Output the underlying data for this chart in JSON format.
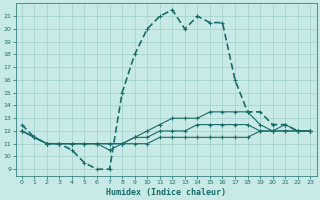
{
  "xlabel": "Humidex (Indice chaleur)",
  "background_color": "#c8eae6",
  "grid_color": "#a0d0cc",
  "line_color": "#1a6b6b",
  "xlim": [
    -0.5,
    23.5
  ],
  "ylim": [
    8.5,
    22.0
  ],
  "yticks": [
    9,
    10,
    11,
    12,
    13,
    14,
    15,
    16,
    17,
    18,
    19,
    20,
    21
  ],
  "xticks": [
    0,
    1,
    2,
    3,
    4,
    5,
    6,
    7,
    8,
    9,
    10,
    11,
    12,
    13,
    14,
    15,
    16,
    17,
    18,
    19,
    20,
    21,
    22,
    23
  ],
  "series": [
    {
      "x": [
        0,
        1,
        2,
        3,
        4,
        5,
        6,
        7,
        8,
        9,
        10,
        11,
        12,
        13,
        14,
        15,
        16,
        17,
        18,
        19,
        20,
        21,
        22,
        23
      ],
      "y": [
        12.5,
        11.5,
        11.0,
        11.0,
        10.5,
        9.5,
        9.0,
        9.0,
        15.0,
        18.0,
        20.0,
        21.0,
        21.5,
        20.0,
        21.0,
        20.5,
        20.5,
        16.0,
        13.5,
        13.5,
        12.5,
        12.5,
        12.0,
        12.0
      ],
      "linewidth": 1.2
    },
    {
      "x": [
        0,
        1,
        2,
        3,
        4,
        5,
        6,
        7,
        8,
        9,
        10,
        11,
        12,
        13,
        14,
        15,
        16,
        17,
        18,
        19,
        20,
        21,
        22,
        23
      ],
      "y": [
        12.0,
        11.5,
        11.0,
        11.0,
        11.0,
        11.0,
        11.0,
        10.5,
        11.0,
        11.5,
        12.0,
        12.5,
        13.0,
        13.0,
        13.0,
        13.5,
        13.5,
        13.5,
        13.5,
        12.5,
        12.0,
        12.5,
        12.0,
        12.0
      ],
      "linewidth": 0.8
    },
    {
      "x": [
        0,
        1,
        2,
        3,
        4,
        5,
        6,
        7,
        8,
        9,
        10,
        11,
        12,
        13,
        14,
        15,
        16,
        17,
        18,
        19,
        20,
        21,
        22,
        23
      ],
      "y": [
        12.0,
        11.5,
        11.0,
        11.0,
        11.0,
        11.0,
        11.0,
        11.0,
        11.0,
        11.5,
        11.5,
        12.0,
        12.0,
        12.0,
        12.5,
        12.5,
        12.5,
        12.5,
        12.5,
        12.0,
        12.0,
        12.0,
        12.0,
        12.0
      ],
      "linewidth": 0.8
    },
    {
      "x": [
        0,
        1,
        2,
        3,
        4,
        5,
        6,
        7,
        8,
        9,
        10,
        11,
        12,
        13,
        14,
        15,
        16,
        17,
        18,
        19,
        20,
        21,
        22,
        23
      ],
      "y": [
        12.0,
        11.5,
        11.0,
        11.0,
        11.0,
        11.0,
        11.0,
        11.0,
        11.0,
        11.0,
        11.0,
        11.5,
        11.5,
        11.5,
        11.5,
        11.5,
        11.5,
        11.5,
        11.5,
        12.0,
        12.0,
        12.0,
        12.0,
        12.0
      ],
      "linewidth": 0.8
    }
  ]
}
